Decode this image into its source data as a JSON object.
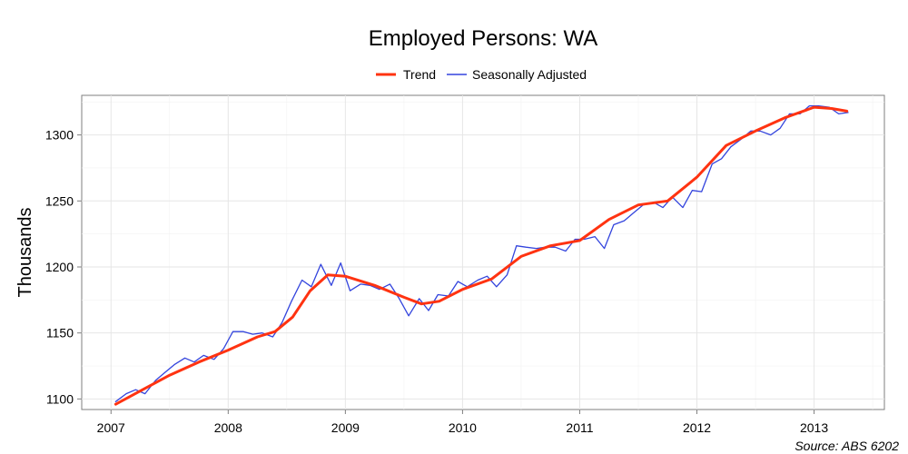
{
  "chart_data": {
    "type": "line",
    "title": "Employed Persons: WA",
    "xlabel": "",
    "ylabel": "Thousands",
    "source": "Source: ABS 6202",
    "xlim": [
      2006.75,
      2013.6
    ],
    "ylim": [
      1092,
      1330
    ],
    "x_ticks": [
      2007,
      2008,
      2009,
      2010,
      2011,
      2012,
      2013
    ],
    "y_ticks": [
      1100,
      1150,
      1200,
      1250,
      1300
    ],
    "grid": true,
    "legend_position": "top",
    "series": [
      {
        "name": "Trend",
        "color": "#ff3311",
        "points": [
          [
            2007.04,
            1096
          ],
          [
            2007.25,
            1106
          ],
          [
            2007.5,
            1118
          ],
          [
            2007.75,
            1128
          ],
          [
            2008.0,
            1137
          ],
          [
            2008.25,
            1147
          ],
          [
            2008.4,
            1151
          ],
          [
            2008.55,
            1162
          ],
          [
            2008.7,
            1182
          ],
          [
            2008.85,
            1194
          ],
          [
            2009.0,
            1193
          ],
          [
            2009.25,
            1186
          ],
          [
            2009.5,
            1177
          ],
          [
            2009.65,
            1172
          ],
          [
            2009.8,
            1174
          ],
          [
            2010.0,
            1183
          ],
          [
            2010.25,
            1191
          ],
          [
            2010.5,
            1208
          ],
          [
            2010.75,
            1216
          ],
          [
            2011.0,
            1220
          ],
          [
            2011.25,
            1236
          ],
          [
            2011.5,
            1247
          ],
          [
            2011.75,
            1250
          ],
          [
            2012.0,
            1268
          ],
          [
            2012.25,
            1292
          ],
          [
            2012.5,
            1303
          ],
          [
            2012.75,
            1313
          ],
          [
            2013.0,
            1321
          ],
          [
            2013.15,
            1320
          ],
          [
            2013.28,
            1318
          ]
        ]
      },
      {
        "name": "Seasonally Adjusted",
        "color": "#3344dd",
        "points": [
          [
            2007.04,
            1098
          ],
          [
            2007.13,
            1104
          ],
          [
            2007.21,
            1107
          ],
          [
            2007.29,
            1104
          ],
          [
            2007.38,
            1114
          ],
          [
            2007.46,
            1120
          ],
          [
            2007.54,
            1126
          ],
          [
            2007.63,
            1131
          ],
          [
            2007.71,
            1128
          ],
          [
            2007.79,
            1133
          ],
          [
            2007.88,
            1130
          ],
          [
            2007.96,
            1138
          ],
          [
            2008.04,
            1151
          ],
          [
            2008.13,
            1151
          ],
          [
            2008.21,
            1149
          ],
          [
            2008.29,
            1150
          ],
          [
            2008.38,
            1147
          ],
          [
            2008.46,
            1158
          ],
          [
            2008.54,
            1174
          ],
          [
            2008.63,
            1190
          ],
          [
            2008.71,
            1185
          ],
          [
            2008.79,
            1202
          ],
          [
            2008.88,
            1186
          ],
          [
            2008.96,
            1203
          ],
          [
            2009.04,
            1182
          ],
          [
            2009.13,
            1187
          ],
          [
            2009.21,
            1186
          ],
          [
            2009.29,
            1183
          ],
          [
            2009.38,
            1187
          ],
          [
            2009.46,
            1176
          ],
          [
            2009.54,
            1163
          ],
          [
            2009.63,
            1176
          ],
          [
            2009.71,
            1167
          ],
          [
            2009.79,
            1179
          ],
          [
            2009.88,
            1178
          ],
          [
            2009.96,
            1189
          ],
          [
            2010.04,
            1185
          ],
          [
            2010.13,
            1190
          ],
          [
            2010.21,
            1193
          ],
          [
            2010.29,
            1185
          ],
          [
            2010.38,
            1194
          ],
          [
            2010.46,
            1216
          ],
          [
            2010.54,
            1215
          ],
          [
            2010.63,
            1214
          ],
          [
            2010.71,
            1215
          ],
          [
            2010.79,
            1215
          ],
          [
            2010.88,
            1212
          ],
          [
            2010.96,
            1221
          ],
          [
            2011.04,
            1221
          ],
          [
            2011.13,
            1223
          ],
          [
            2011.21,
            1214
          ],
          [
            2011.29,
            1232
          ],
          [
            2011.38,
            1235
          ],
          [
            2011.46,
            1241
          ],
          [
            2011.54,
            1247
          ],
          [
            2011.63,
            1249
          ],
          [
            2011.71,
            1245
          ],
          [
            2011.79,
            1253
          ],
          [
            2011.88,
            1245
          ],
          [
            2011.96,
            1258
          ],
          [
            2012.04,
            1257
          ],
          [
            2012.13,
            1278
          ],
          [
            2012.21,
            1282
          ],
          [
            2012.29,
            1291
          ],
          [
            2012.38,
            1297
          ],
          [
            2012.46,
            1303
          ],
          [
            2012.54,
            1303
          ],
          [
            2012.63,
            1300
          ],
          [
            2012.71,
            1305
          ],
          [
            2012.79,
            1316
          ],
          [
            2012.88,
            1316
          ],
          [
            2012.96,
            1322
          ],
          [
            2013.04,
            1322
          ],
          [
            2013.13,
            1321
          ],
          [
            2013.21,
            1316
          ],
          [
            2013.29,
            1317
          ]
        ]
      }
    ]
  }
}
